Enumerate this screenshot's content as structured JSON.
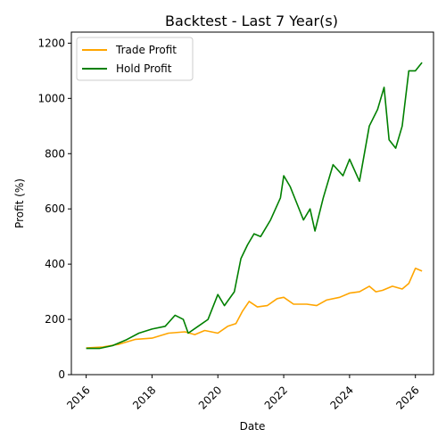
{
  "chart_data": {
    "type": "line",
    "title": "Backtest - Last 7 Year(s)",
    "xlabel": "Date",
    "ylabel": "Profit (%)",
    "xlim": [
      2015.55,
      2026.55
    ],
    "ylim": [
      0,
      1240
    ],
    "x_ticks": [
      2016,
      2018,
      2020,
      2022,
      2024,
      2026
    ],
    "y_ticks": [
      0,
      200,
      400,
      600,
      800,
      1000,
      1200
    ],
    "grid": false,
    "legend_position": "upper-left",
    "series": [
      {
        "name": "Trade Profit",
        "color": "#ffa500",
        "points": [
          [
            2016.0,
            97
          ],
          [
            2016.5,
            100
          ],
          [
            2017.0,
            110
          ],
          [
            2017.5,
            128
          ],
          [
            2018.0,
            132
          ],
          [
            2018.5,
            150
          ],
          [
            2019.0,
            155
          ],
          [
            2019.3,
            145
          ],
          [
            2019.6,
            160
          ],
          [
            2020.0,
            150
          ],
          [
            2020.3,
            175
          ],
          [
            2020.55,
            185
          ],
          [
            2020.75,
            230
          ],
          [
            2020.95,
            265
          ],
          [
            2021.2,
            245
          ],
          [
            2021.5,
            250
          ],
          [
            2021.8,
            275
          ],
          [
            2022.0,
            280
          ],
          [
            2022.3,
            255
          ],
          [
            2022.7,
            255
          ],
          [
            2023.0,
            250
          ],
          [
            2023.3,
            270
          ],
          [
            2023.7,
            280
          ],
          [
            2024.0,
            295
          ],
          [
            2024.3,
            300
          ],
          [
            2024.6,
            320
          ],
          [
            2024.8,
            300
          ],
          [
            2025.0,
            305
          ],
          [
            2025.3,
            320
          ],
          [
            2025.6,
            310
          ],
          [
            2025.8,
            330
          ],
          [
            2026.0,
            385
          ],
          [
            2026.2,
            375
          ]
        ]
      },
      {
        "name": "Hold Profit",
        "color": "#008000",
        "points": [
          [
            2016.0,
            95
          ],
          [
            2016.4,
            95
          ],
          [
            2016.8,
            105
          ],
          [
            2017.2,
            125
          ],
          [
            2017.6,
            150
          ],
          [
            2018.0,
            165
          ],
          [
            2018.4,
            175
          ],
          [
            2018.7,
            215
          ],
          [
            2018.95,
            200
          ],
          [
            2019.1,
            150
          ],
          [
            2019.4,
            175
          ],
          [
            2019.7,
            200
          ],
          [
            2020.0,
            290
          ],
          [
            2020.2,
            250
          ],
          [
            2020.5,
            300
          ],
          [
            2020.7,
            420
          ],
          [
            2020.9,
            470
          ],
          [
            2021.1,
            510
          ],
          [
            2021.3,
            500
          ],
          [
            2021.6,
            560
          ],
          [
            2021.9,
            640
          ],
          [
            2022.0,
            720
          ],
          [
            2022.2,
            680
          ],
          [
            2022.4,
            620
          ],
          [
            2022.6,
            560
          ],
          [
            2022.8,
            600
          ],
          [
            2022.95,
            520
          ],
          [
            2023.2,
            640
          ],
          [
            2023.5,
            760
          ],
          [
            2023.8,
            720
          ],
          [
            2024.0,
            780
          ],
          [
            2024.3,
            700
          ],
          [
            2024.6,
            900
          ],
          [
            2024.85,
            960
          ],
          [
            2025.05,
            1040
          ],
          [
            2025.2,
            850
          ],
          [
            2025.4,
            820
          ],
          [
            2025.6,
            900
          ],
          [
            2025.8,
            1100
          ],
          [
            2026.0,
            1100
          ],
          [
            2026.2,
            1130
          ]
        ]
      }
    ]
  }
}
